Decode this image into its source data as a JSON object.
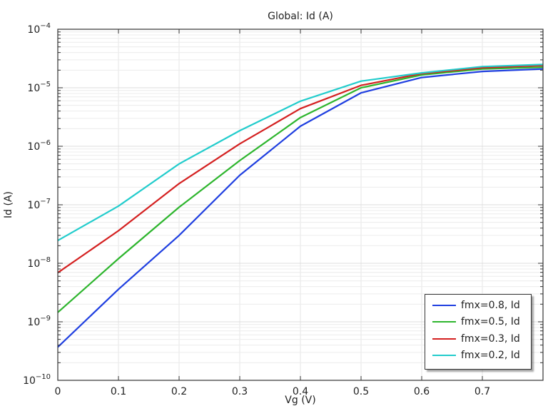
{
  "chart_data": {
    "type": "line",
    "title": "Global: Id (A)",
    "xlabel": "Vg (V)",
    "ylabel": "Id (A)",
    "xscale": "linear",
    "yscale": "log",
    "xlim": [
      0,
      0.8
    ],
    "ylim": [
      1e-10,
      0.0001
    ],
    "grid": true,
    "legend_position": "lower right",
    "x_ticks": [
      "0",
      "0.1",
      "0.2",
      "0.3",
      "0.4",
      "0.5",
      "0.6",
      "0.7"
    ],
    "y_ticks": [
      "10^-10",
      "10^-9",
      "10^-8",
      "10^-7",
      "10^-6",
      "10^-5",
      "10^-4"
    ],
    "x": [
      0,
      0.1,
      0.2,
      0.3,
      0.4,
      0.5,
      0.6,
      0.7,
      0.8
    ],
    "series": [
      {
        "name": "fmx=0.8, Id",
        "color": "#1f3fe0",
        "values": [
          3.7e-10,
          3.6e-09,
          3e-08,
          3.2e-07,
          2.2e-06,
          8.2e-06,
          1.5e-05,
          1.9e-05,
          2.1e-05
        ]
      },
      {
        "name": "fmx=0.5, Id",
        "color": "#2db52d",
        "values": [
          1.45e-09,
          1.2e-08,
          9.1e-08,
          5.7e-07,
          3.1e-06,
          1e-05,
          1.66e-05,
          2.1e-05,
          2.25e-05
        ]
      },
      {
        "name": "fmx=0.3, Id",
        "color": "#d42020",
        "values": [
          6.9e-09,
          3.6e-08,
          2.3e-07,
          1.1e-06,
          4.4e-06,
          1.1e-05,
          1.75e-05,
          2.2e-05,
          2.4e-05
        ]
      },
      {
        "name": "fmx=0.2, Id",
        "color": "#22cccc",
        "values": [
          2.45e-08,
          9.5e-08,
          5e-07,
          1.85e-06,
          5.9e-06,
          1.3e-05,
          1.8e-05,
          2.3e-05,
          2.5e-05
        ]
      }
    ]
  },
  "legend": {
    "items": [
      {
        "label": "fmx=0.8, Id",
        "color": "#1f3fe0"
      },
      {
        "label": "fmx=0.5, Id",
        "color": "#2db52d"
      },
      {
        "label": "fmx=0.3, Id",
        "color": "#d42020"
      },
      {
        "label": "fmx=0.2, Id",
        "color": "#22cccc"
      }
    ]
  }
}
